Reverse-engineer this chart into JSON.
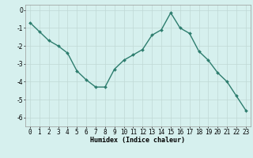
{
  "x": [
    0,
    1,
    2,
    3,
    4,
    5,
    6,
    7,
    8,
    9,
    10,
    11,
    12,
    13,
    14,
    15,
    16,
    17,
    18,
    19,
    20,
    21,
    22,
    23
  ],
  "y": [
    -0.7,
    -1.2,
    -1.7,
    -2.0,
    -2.4,
    -3.4,
    -3.9,
    -4.3,
    -4.3,
    -3.3,
    -2.8,
    -2.5,
    -2.2,
    -1.4,
    -1.1,
    -0.15,
    -1.0,
    -1.3,
    -2.3,
    -2.8,
    -3.5,
    -4.0,
    -4.8,
    -5.6
  ],
  "line_color": "#2d7d6e",
  "marker": "D",
  "marker_size": 2.0,
  "bg_color": "#d6f0ee",
  "grid_color": "#c0d8d5",
  "xlabel": "Humidex (Indice chaleur)",
  "ylim": [
    -6.5,
    0.3
  ],
  "xlim": [
    -0.5,
    23.5
  ],
  "yticks": [
    0,
    -1,
    -2,
    -3,
    -4,
    -5,
    -6
  ],
  "xticks": [
    0,
    1,
    2,
    3,
    4,
    5,
    6,
    7,
    8,
    9,
    10,
    11,
    12,
    13,
    14,
    15,
    16,
    17,
    18,
    19,
    20,
    21,
    22,
    23
  ],
  "xlabel_fontsize": 6.0,
  "tick_fontsize": 5.5,
  "line_width": 1.0,
  "spine_color": "#999999"
}
